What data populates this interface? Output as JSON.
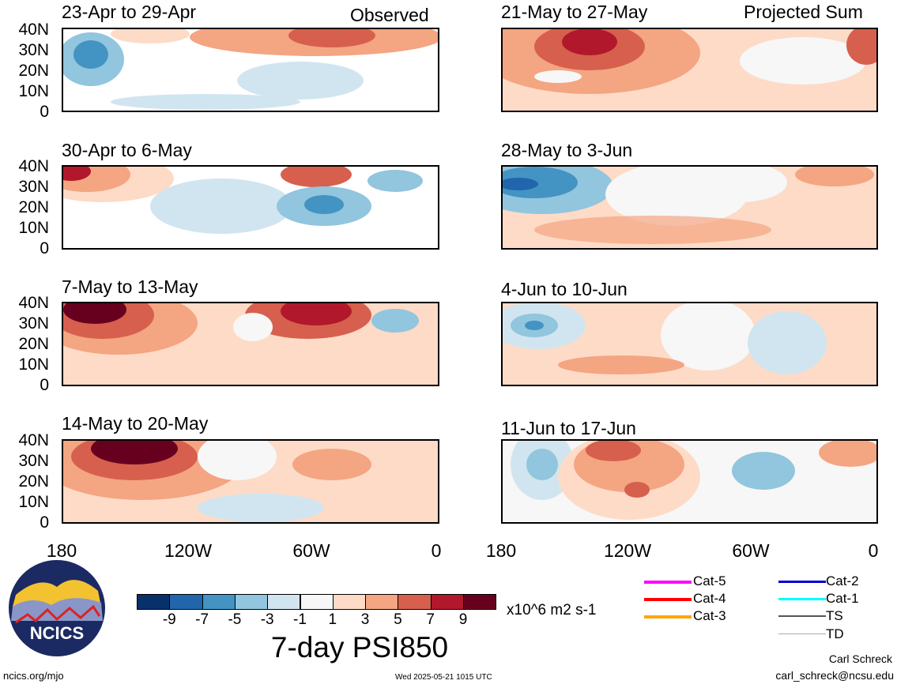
{
  "panels": [
    {
      "title": "23-Apr to 29-Apr",
      "tag": "Observed"
    },
    {
      "title": "21-May to 27-May",
      "tag": "Projected Sum"
    },
    {
      "title": "30-Apr to 6-May",
      "tag": ""
    },
    {
      "title": "28-May to 3-Jun",
      "tag": ""
    },
    {
      "title": "7-May to 13-May",
      "tag": ""
    },
    {
      "title": "4-Jun to 10-Jun",
      "tag": ""
    },
    {
      "title": "14-May to 20-May",
      "tag": ""
    },
    {
      "title": "11-Jun to 17-Jun",
      "tag": ""
    }
  ],
  "lat_labels": [
    "40N",
    "30N",
    "20N",
    "10N",
    "0"
  ],
  "lon_labels": [
    "180",
    "120W",
    "60W",
    "0"
  ],
  "colorbar": {
    "colors": [
      "#08306b",
      "#2166ac",
      "#4393c3",
      "#92c5de",
      "#d1e5f0",
      "#f7f7f7",
      "#fddbc7",
      "#f4a582",
      "#d6604d",
      "#b2182b",
      "#67001f"
    ],
    "labels": [
      "-9",
      "-7",
      "-5",
      "-3",
      "-1",
      "1",
      "3",
      "5",
      "7",
      "9"
    ],
    "units": "x10^6 m2 s-1"
  },
  "main_title": "7-day PSI850",
  "legend": [
    {
      "label": "Cat-5",
      "color": "#ff00ff"
    },
    {
      "label": "Cat-4",
      "color": "#ff0000"
    },
    {
      "label": "Cat-3",
      "color": "#ffa500"
    },
    {
      "label": "Cat-2",
      "color": "#0000cc"
    },
    {
      "label": "Cat-1",
      "color": "#00ffff"
    },
    {
      "label": "TS",
      "color": "#555555"
    },
    {
      "label": "TD",
      "color": "#aaaaaa"
    }
  ],
  "logo": {
    "text": "NCICS"
  },
  "footer": {
    "left": "ncics.org/mjo",
    "center": "Wed 2025-05-21 1015 UTC",
    "author": "Carl Schreck",
    "email": "carl_schreck@ncsu.edu"
  }
}
